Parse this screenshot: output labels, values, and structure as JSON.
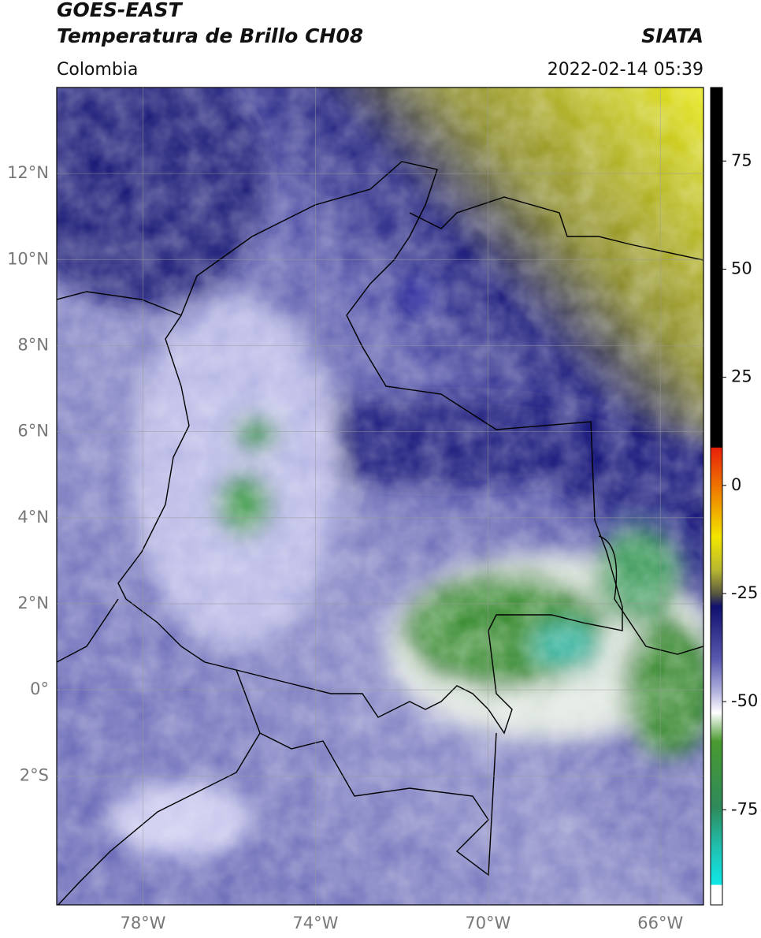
{
  "header": {
    "title": "GOES-EAST",
    "subtitle": "Temperatura de Brillo CH08",
    "source": "SIATA",
    "region": "Colombia",
    "datetime": "2022-02-14 05:39"
  },
  "map": {
    "xlim": [
      -80,
      -65
    ],
    "ylim": [
      -5,
      14
    ],
    "xticks": [
      {
        "value": -78,
        "label": "78°W"
      },
      {
        "value": -74,
        "label": "74°W"
      },
      {
        "value": -70,
        "label": "70°W"
      },
      {
        "value": -66,
        "label": "66°W"
      }
    ],
    "yticks": [
      {
        "value": 12,
        "label": "12°N"
      },
      {
        "value": 10,
        "label": "10°N"
      },
      {
        "value": 8,
        "label": "8°N"
      },
      {
        "value": 6,
        "label": "6°N"
      },
      {
        "value": 4,
        "label": "4°N"
      },
      {
        "value": 2,
        "label": "2°N"
      },
      {
        "value": 0,
        "label": "0°"
      },
      {
        "value": -2,
        "label": "2°S"
      }
    ]
  },
  "colorbar": {
    "lim": [
      -97,
      92
    ],
    "ticks": [
      75,
      50,
      25,
      0,
      -25,
      -50,
      -75
    ]
  }
}
